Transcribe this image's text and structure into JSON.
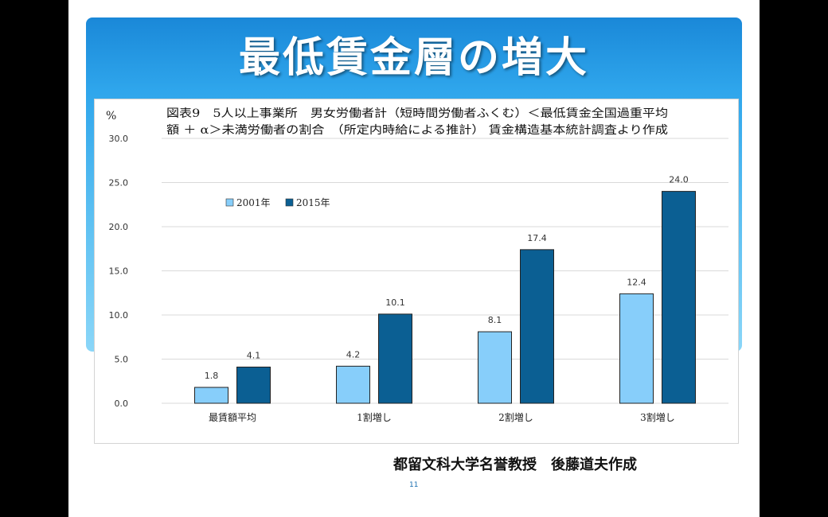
{
  "slide": {
    "title": "最低賃金層の増大",
    "footer_credit": "都留文科大学名誉教授　後藤道夫作成",
    "page_number": "11"
  },
  "colors": {
    "banner_blue": "#2aa0e8",
    "series_2001": "#87cefa",
    "series_2015": "#0b5f93"
  },
  "chart_data": {
    "type": "bar",
    "title_lines": [
      "図表9　5人以上事業所　男女労働者計（短時間労働者ふくむ）＜最低賃金全国過重平均",
      "額 ＋ α＞未満労働者の割合　（所定内時給による推計）  賃金構造基本統計調査より作成"
    ],
    "y_unit": "%",
    "categories": [
      "最賃額平均",
      "1割増し",
      "2割増し",
      "3割増し"
    ],
    "series": [
      {
        "name": "2001年",
        "values": [
          1.8,
          4.2,
          8.1,
          12.4
        ],
        "labels": [
          "1.8",
          "4.2",
          "8.1",
          "12.4"
        ],
        "color": "#87cefa"
      },
      {
        "name": "2015年",
        "values": [
          4.1,
          10.1,
          17.4,
          24.0
        ],
        "labels": [
          "4.1",
          "10.1",
          "17.4",
          "24.0"
        ],
        "color": "#0b5f93"
      }
    ],
    "ylim": [
      0,
      30
    ],
    "yticks": [
      "0.0",
      "5.0",
      "10.0",
      "15.0",
      "20.0",
      "25.0",
      "30.0"
    ],
    "grid": true,
    "legend_position": "top-left"
  }
}
